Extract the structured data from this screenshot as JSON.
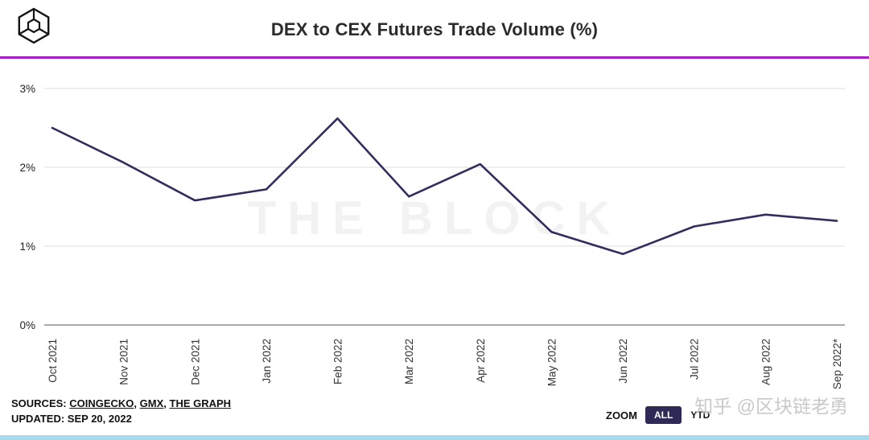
{
  "title": "DEX to CEX Futures Trade Volume (%)",
  "watermark": "THE BLOCK",
  "site_watermark": "知乎 @区块链老勇",
  "chart_data": {
    "type": "line",
    "title": "DEX to CEX Futures Trade Volume (%)",
    "categories": [
      "Oct 2021",
      "Nov 2021",
      "Dec 2021",
      "Jan 2022",
      "Feb 2022",
      "Mar 2022",
      "Apr 2022",
      "May 2022",
      "Jun 2022",
      "Jul 2022",
      "Aug 2022",
      "Sep 2022*"
    ],
    "values": [
      2.5,
      2.06,
      1.58,
      1.72,
      2.62,
      1.63,
      2.04,
      1.18,
      0.9,
      1.25,
      1.4,
      1.32
    ],
    "xlabel": "",
    "ylabel": "",
    "ylim": [
      0,
      3
    ],
    "yticks": [
      {
        "value": 0,
        "label": "0%"
      },
      {
        "value": 1,
        "label": "1%"
      },
      {
        "value": 2,
        "label": "2%"
      },
      {
        "value": 3,
        "label": "3%"
      }
    ],
    "grid": true,
    "legend_position": "none",
    "line_color": "#312e5e"
  },
  "colors": {
    "accent_divider": "#a81fc6",
    "line": "#312e5e",
    "zoom_active_bg": "#2d2a56",
    "zoom_active_text": "#ffffff",
    "gridline": "#dcdcdc",
    "axis_line": "#555555",
    "bottom_bar": "#a6d9ec"
  },
  "footer": {
    "sources_label": "SOURCES:",
    "sources": [
      {
        "label": "COINGECKO"
      },
      {
        "label": "GMX"
      },
      {
        "label": "THE GRAPH"
      }
    ],
    "updated_label": "UPDATED: SEP 20, 2022",
    "zoom_label": "ZOOM",
    "zoom_options": [
      {
        "label": "ALL",
        "active": true
      },
      {
        "label": "YTD",
        "active": false
      }
    ]
  }
}
